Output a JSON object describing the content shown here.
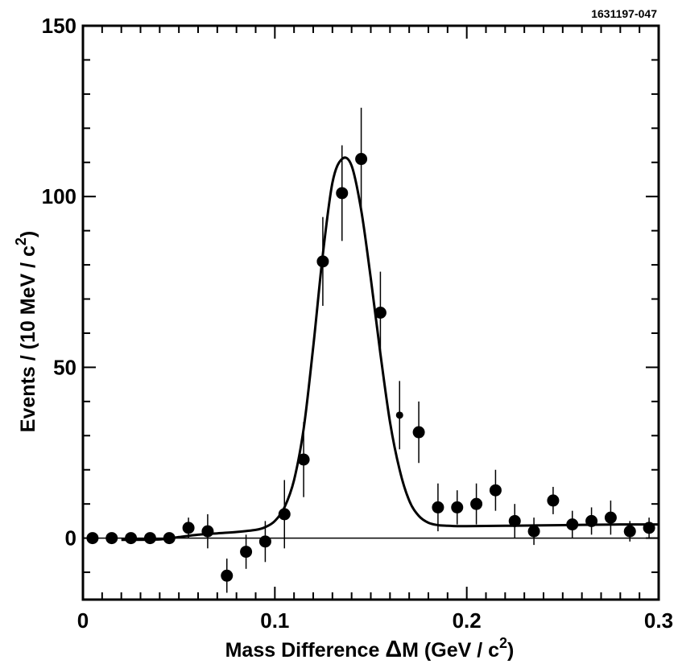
{
  "chart_data": {
    "type": "scatter",
    "figure_id": "1631197-047",
    "xlabel": {
      "pre": "Mass  Difference  ",
      "delta": "Δ",
      "mid": "M (GeV / c",
      "sup": "2",
      "post": ")"
    },
    "ylabel": {
      "pre": "Events / (10 MeV / c",
      "sup": "2",
      "post": ")"
    },
    "xlim": [
      0,
      0.3
    ],
    "ylim": [
      -18,
      150
    ],
    "x_ticks": [
      {
        "value": 0,
        "label": "0"
      },
      {
        "value": 0.1,
        "label": "0.1"
      },
      {
        "value": 0.2,
        "label": "0.2"
      },
      {
        "value": 0.3,
        "label": "0.3"
      }
    ],
    "y_ticks": [
      {
        "value": 0,
        "label": "0"
      },
      {
        "value": 50,
        "label": "50"
      },
      {
        "value": 100,
        "label": "100"
      },
      {
        "value": 150,
        "label": "150"
      }
    ],
    "x_minor_step": 0.01,
    "y_minor_step": 10,
    "zero_line": true,
    "series": [
      {
        "name": "data",
        "x": [
          0.005,
          0.015,
          0.025,
          0.035,
          0.045,
          0.055,
          0.065,
          0.075,
          0.085,
          0.095,
          0.105,
          0.115,
          0.125,
          0.135,
          0.145,
          0.155,
          0.165,
          0.175,
          0.185,
          0.195,
          0.205,
          0.215,
          0.225,
          0.235,
          0.245,
          0.255,
          0.265,
          0.275,
          0.285,
          0.295
        ],
        "y": [
          0,
          0,
          0,
          0,
          0,
          3,
          2,
          -11,
          -4,
          -1,
          7,
          23,
          81,
          101,
          111,
          66,
          36,
          31,
          9,
          9,
          10,
          14,
          5,
          2,
          11,
          4,
          5,
          6,
          2,
          3
        ],
        "yerr": [
          0,
          0,
          0,
          0,
          1.5,
          3,
          5,
          5,
          5,
          6,
          10,
          11,
          13,
          14,
          15,
          12,
          10,
          9,
          7,
          5,
          6,
          6,
          5,
          4,
          4,
          4,
          4,
          5,
          3,
          3
        ],
        "marker_small": [
          false,
          false,
          false,
          false,
          false,
          false,
          false,
          false,
          false,
          false,
          false,
          false,
          false,
          false,
          false,
          false,
          true,
          false,
          false,
          false,
          false,
          false,
          false,
          false,
          false,
          false,
          false,
          false,
          false,
          false
        ]
      },
      {
        "name": "fit",
        "type": "line",
        "x": [
          0.02,
          0.04,
          0.05,
          0.06,
          0.07,
          0.08,
          0.09,
          0.095,
          0.1,
          0.105,
          0.11,
          0.115,
          0.12,
          0.125,
          0.13,
          0.135,
          0.14,
          0.145,
          0.15,
          0.155,
          0.16,
          0.165,
          0.17,
          0.175,
          0.18,
          0.185,
          0.19,
          0.195,
          0.2,
          0.22,
          0.25,
          0.28,
          0.3
        ],
        "y": [
          -0.5,
          -0.4,
          0.3,
          1,
          1.4,
          1.8,
          2.4,
          3.2,
          5,
          9,
          17,
          32,
          56,
          83,
          104,
          111,
          109,
          96,
          76,
          54,
          34,
          20,
          11,
          6.5,
          4.5,
          3.8,
          3.6,
          3.5,
          3.5,
          3.6,
          3.8,
          4,
          4
        ]
      }
    ]
  }
}
